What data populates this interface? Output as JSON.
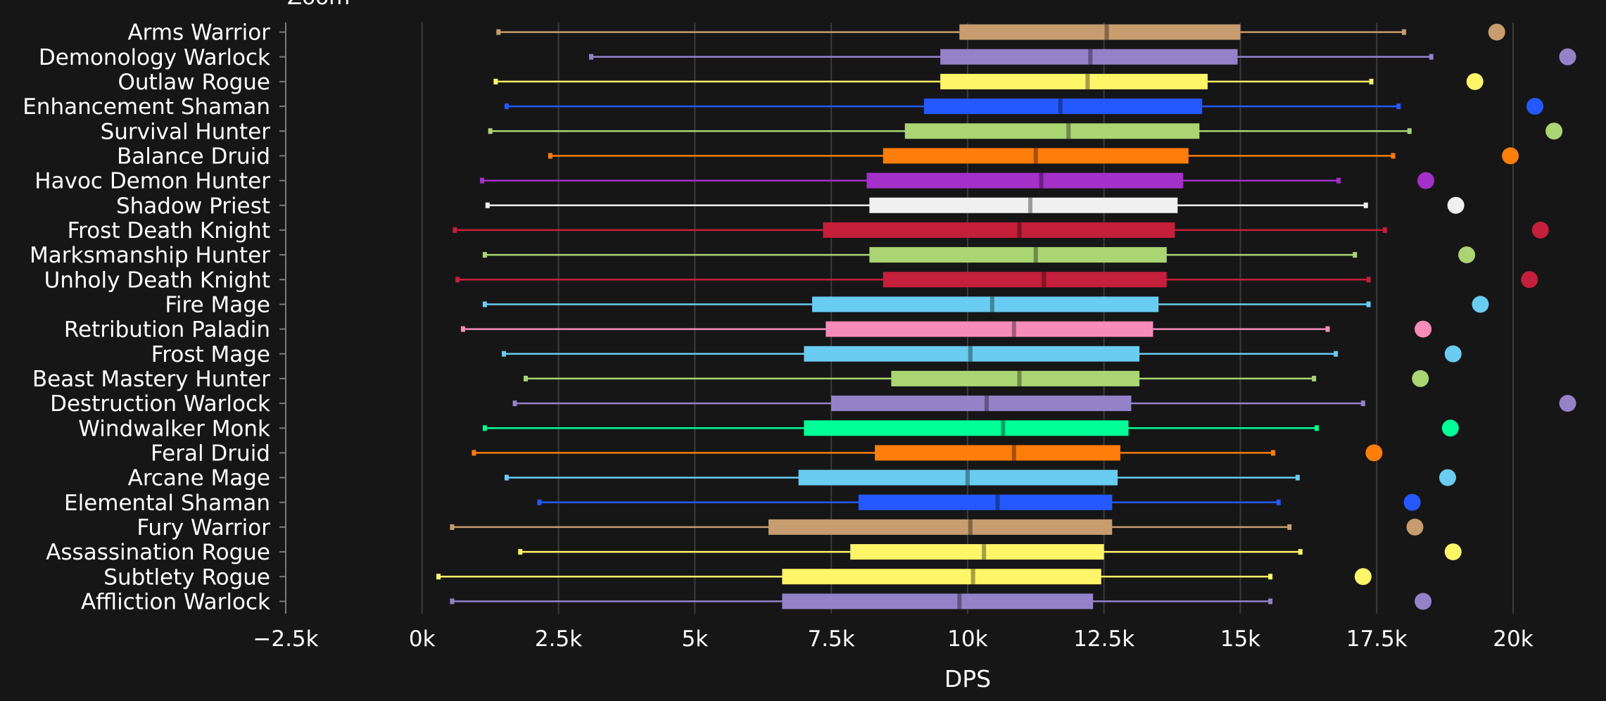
{
  "chart_data": {
    "type": "box",
    "title": "Zoom",
    "xlabel": "DPS",
    "ylabel": "",
    "xlim": [
      -2500,
      20000
    ],
    "x_ticks": [
      -2500,
      0,
      2500,
      5000,
      7500,
      10000,
      12500,
      15000,
      17500,
      20000
    ],
    "x_tick_labels": [
      "−2.5k",
      "0k",
      "2.5k",
      "5k",
      "7.5k",
      "10k",
      "12.5k",
      "15k",
      "17.5k",
      "20k"
    ],
    "grid": true,
    "series": [
      {
        "name": "Arms Warrior",
        "color": "#c79c6e",
        "min": 1400,
        "q1": 9850,
        "median": 12550,
        "q3": 15000,
        "max": 18000,
        "outlier": 19700
      },
      {
        "name": "Demonology Warlock",
        "color": "#9482c9",
        "min": 3100,
        "q1": 9500,
        "median": 12250,
        "q3": 14950,
        "max": 18500,
        "outlier": 21000
      },
      {
        "name": "Outlaw Rogue",
        "color": "#fff569",
        "min": 1350,
        "q1": 9500,
        "median": 12200,
        "q3": 14400,
        "max": 17400,
        "outlier": 19300
      },
      {
        "name": "Enhancement Shaman",
        "color": "#2459ff",
        "min": 1550,
        "q1": 9200,
        "median": 11700,
        "q3": 14300,
        "max": 17900,
        "outlier": 20400
      },
      {
        "name": "Survival Hunter",
        "color": "#abd473",
        "min": 1250,
        "q1": 8850,
        "median": 11850,
        "q3": 14250,
        "max": 18100,
        "outlier": 20750
      },
      {
        "name": "Balance Druid",
        "color": "#ff7d0a",
        "min": 2350,
        "q1": 8450,
        "median": 11250,
        "q3": 14050,
        "max": 17800,
        "outlier": 19950
      },
      {
        "name": "Havoc Demon Hunter",
        "color": "#a330c9",
        "min": 1100,
        "q1": 8150,
        "median": 11350,
        "q3": 13950,
        "max": 16800,
        "outlier": 18400
      },
      {
        "name": "Shadow Priest",
        "color": "#f0f0f0",
        "min": 1200,
        "q1": 8200,
        "median": 11150,
        "q3": 13850,
        "max": 17300,
        "outlier": 18950
      },
      {
        "name": "Frost Death Knight",
        "color": "#c41f3b",
        "min": 600,
        "q1": 7350,
        "median": 10950,
        "q3": 13800,
        "max": 17650,
        "outlier": 20500
      },
      {
        "name": "Marksmanship Hunter",
        "color": "#abd473",
        "min": 1150,
        "q1": 8200,
        "median": 11250,
        "q3": 13650,
        "max": 17100,
        "outlier": 19150
      },
      {
        "name": "Unholy Death Knight",
        "color": "#c41f3b",
        "min": 650,
        "q1": 8450,
        "median": 11400,
        "q3": 13650,
        "max": 17350,
        "outlier": 20300
      },
      {
        "name": "Fire Mage",
        "color": "#69ccf0",
        "min": 1150,
        "q1": 7150,
        "median": 10450,
        "q3": 13500,
        "max": 17350,
        "outlier": 19400
      },
      {
        "name": "Retribution Paladin",
        "color": "#f58cba",
        "min": 750,
        "q1": 7400,
        "median": 10850,
        "q3": 13400,
        "max": 16600,
        "outlier": 18350
      },
      {
        "name": "Frost Mage",
        "color": "#69ccf0",
        "min": 1500,
        "q1": 7000,
        "median": 10050,
        "q3": 13150,
        "max": 16750,
        "outlier": 18900
      },
      {
        "name": "Beast Mastery Hunter",
        "color": "#abd473",
        "min": 1900,
        "q1": 8600,
        "median": 10950,
        "q3": 13150,
        "max": 16350,
        "outlier": 18300
      },
      {
        "name": "Destruction Warlock",
        "color": "#9482c9",
        "min": 1700,
        "q1": 7500,
        "median": 10350,
        "q3": 13000,
        "max": 17250,
        "outlier": 21000
      },
      {
        "name": "Windwalker Monk",
        "color": "#00ff96",
        "min": 1150,
        "q1": 7000,
        "median": 10650,
        "q3": 12950,
        "max": 16400,
        "outlier": 18850
      },
      {
        "name": "Feral Druid",
        "color": "#ff7d0a",
        "min": 950,
        "q1": 8300,
        "median": 10850,
        "q3": 12800,
        "max": 15600,
        "outlier": 17450
      },
      {
        "name": "Arcane Mage",
        "color": "#69ccf0",
        "min": 1550,
        "q1": 6900,
        "median": 10000,
        "q3": 12750,
        "max": 16050,
        "outlier": 18800
      },
      {
        "name": "Elemental Shaman",
        "color": "#2459ff",
        "min": 2150,
        "q1": 8000,
        "median": 10550,
        "q3": 12650,
        "max": 15700,
        "outlier": 18150
      },
      {
        "name": "Fury Warrior",
        "color": "#c79c6e",
        "min": 550,
        "q1": 6350,
        "median": 10050,
        "q3": 12650,
        "max": 15900,
        "outlier": 18200
      },
      {
        "name": "Assassination Rogue",
        "color": "#fff569",
        "min": 1800,
        "q1": 7850,
        "median": 10300,
        "q3": 12500,
        "max": 16100,
        "outlier": 18900
      },
      {
        "name": "Subtlety Rogue",
        "color": "#fff569",
        "min": 300,
        "q1": 6600,
        "median": 10100,
        "q3": 12450,
        "max": 15550,
        "outlier": 17250
      },
      {
        "name": "Affliction Warlock",
        "color": "#9482c9",
        "min": 550,
        "q1": 6600,
        "median": 9850,
        "q3": 12300,
        "max": 15550,
        "outlier": 18350
      }
    ]
  }
}
